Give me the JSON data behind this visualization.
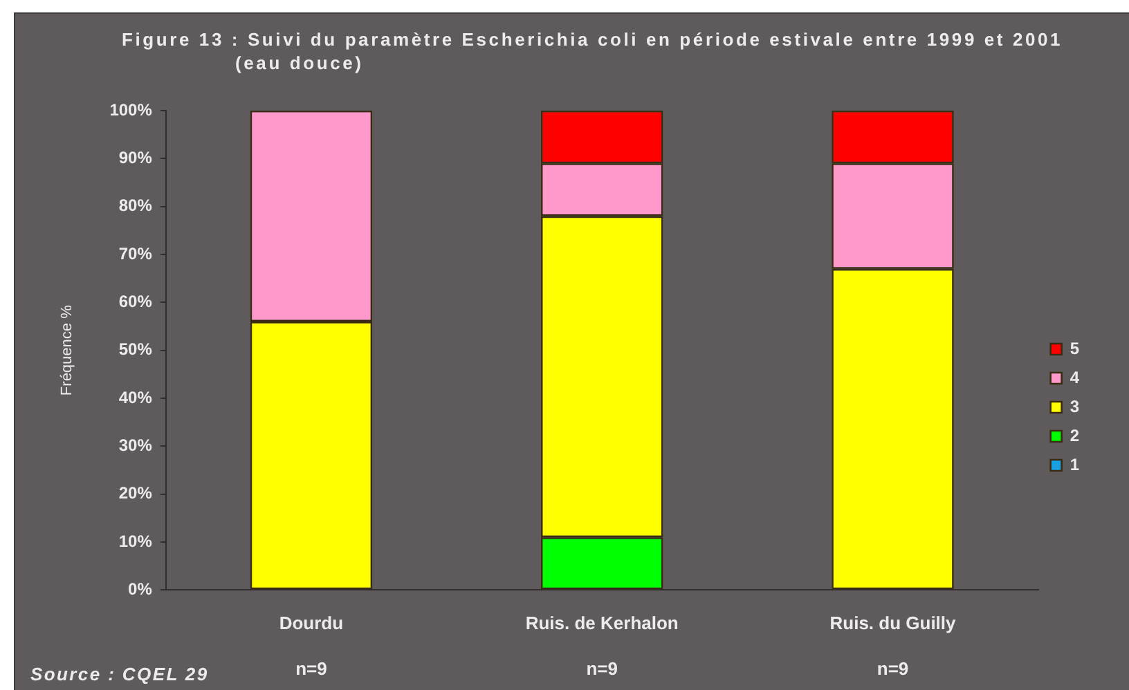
{
  "chart_data": {
    "type": "bar",
    "title": "Figure 13 : Suivi du paramètre Escherichia coli en période estivale entre 1999 et 2001 (eau douce)",
    "ylabel": "Fréquence %",
    "annotations": [
      "Source : CQEL 29"
    ],
    "categories": [
      "Dourdu\nn=9",
      "Ruis. de Kerhalon\nn=9",
      "Ruis. du Guilly\nn=9"
    ],
    "stacked": true,
    "series": [
      {
        "name": "1",
        "color": "#1aa0e0",
        "values": [
          0,
          0,
          0
        ]
      },
      {
        "name": "2",
        "color": "#00ff00",
        "values": [
          0,
          11,
          0
        ]
      },
      {
        "name": "3",
        "color": "#ffff00",
        "values": [
          56,
          67,
          67
        ]
      },
      {
        "name": "4",
        "color": "#ff99cc",
        "values": [
          44,
          11,
          22
        ]
      },
      {
        "name": "5",
        "color": "#ff0000",
        "values": [
          0,
          11,
          11
        ]
      }
    ],
    "ylim": [
      0,
      100
    ],
    "yticks": [
      {
        "value": 0,
        "label": "0%"
      },
      {
        "value": 10,
        "label": "10%"
      },
      {
        "value": 20,
        "label": "20%"
      },
      {
        "value": 30,
        "label": "30%"
      },
      {
        "value": 40,
        "label": "40%"
      },
      {
        "value": 50,
        "label": "50%"
      },
      {
        "value": 60,
        "label": "60%"
      },
      {
        "value": 70,
        "label": "70%"
      },
      {
        "value": 80,
        "label": "80%"
      },
      {
        "value": 90,
        "label": "90%"
      },
      {
        "value": 100,
        "label": "100%"
      }
    ],
    "grid": false,
    "legend": "right"
  }
}
